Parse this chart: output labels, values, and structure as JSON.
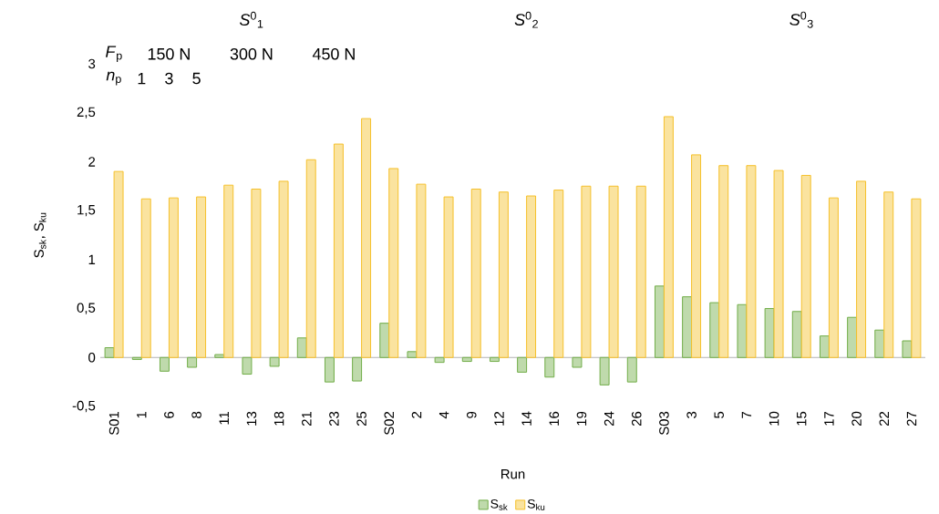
{
  "chart_data": {
    "type": "bar",
    "xlabel": "Run",
    "ylabel": "S$_{sk}$, S$_{ku}$",
    "categories": [
      "S01",
      "1",
      "6",
      "8",
      "11",
      "13",
      "18",
      "21",
      "23",
      "25",
      "S02",
      "2",
      "4",
      "9",
      "12",
      "14",
      "16",
      "19",
      "24",
      "26",
      "S03",
      "3",
      "5",
      "7",
      "10",
      "15",
      "17",
      "20",
      "22",
      "27"
    ],
    "series": [
      {
        "name": "S$_{sk}$",
        "color": "#70ad47",
        "values": [
          0.1,
          -0.02,
          -0.14,
          -0.1,
          0.03,
          -0.17,
          -0.09,
          0.2,
          -0.25,
          -0.24,
          0.35,
          0.06,
          -0.05,
          -0.04,
          -0.04,
          -0.15,
          -0.2,
          -0.1,
          -0.28,
          -0.25,
          0.73,
          0.62,
          0.56,
          0.54,
          0.5,
          0.47,
          0.22,
          0.41,
          0.28,
          0.17
        ]
      },
      {
        "name": "S$_{ku}$",
        "color": "#f5c02a",
        "values": [
          1.9,
          1.62,
          1.63,
          1.64,
          1.76,
          1.72,
          1.8,
          2.02,
          2.18,
          2.44,
          1.93,
          1.77,
          1.64,
          1.72,
          1.69,
          1.65,
          1.71,
          1.75,
          1.75,
          1.75,
          2.46,
          2.07,
          1.96,
          1.96,
          1.91,
          1.86,
          1.63,
          1.8,
          1.69,
          1.62
        ]
      }
    ],
    "ylim": [
      -0.5,
      3
    ],
    "yticks": [
      {
        "value": -0.5,
        "label": "-0,5"
      },
      0,
      {
        "value": 0.5,
        "label": "0,5"
      },
      1,
      {
        "value": 1.5,
        "label": "1,5"
      },
      2,
      {
        "value": 2.5,
        "label": "2,5"
      },
      3
    ],
    "legend": "bottom",
    "annotations": [
      "*S*$^{0}$$_{1}$",
      "*S*$^{0}$$_{2}$",
      "*S*$^{0}$$_{3}$",
      "*F*$_{p}$",
      "*n*$_{p}$",
      "150 N",
      "300 N",
      "450 N",
      "1",
      "3",
      "5"
    ]
  }
}
